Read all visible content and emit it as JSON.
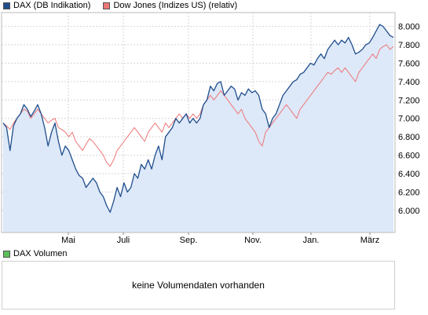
{
  "legend": [
    {
      "label": "DAX (DB Indikation)",
      "color": "#1f4e8c"
    },
    {
      "label": "Dow Jones (Indizes US) (relativ)",
      "color": "#ee7777"
    }
  ],
  "volume": {
    "legend_label": "DAX Volumen",
    "legend_color": "#5cc05c",
    "message": "keine Volumendaten vorhanden"
  },
  "chart_data": {
    "type": "line",
    "x_tick_labels": [
      "Mai",
      "Juli",
      "Sep.",
      "Nov.",
      "Jan.",
      "März"
    ],
    "y_tick_labels": [
      "6.000",
      "6.200",
      "6.400",
      "6.600",
      "6.800",
      "7.000",
      "7.200",
      "7.400",
      "7.600",
      "7.800",
      "8.000"
    ],
    "y_ticks": [
      6000,
      6200,
      6400,
      6600,
      6800,
      7000,
      7200,
      7400,
      7600,
      7800,
      8000
    ],
    "ylim": [
      5760,
      8150
    ],
    "grid": true,
    "legend_position": "top-left",
    "series": [
      {
        "name": "DAX (DB Indikation)",
        "color": "#1f4e8c",
        "fill": "#dde8f8",
        "values": [
          6950,
          6900,
          6650,
          6920,
          7000,
          7050,
          7150,
          7100,
          7020,
          7080,
          7150,
          7050,
          6900,
          6700,
          6850,
          6950,
          6750,
          6600,
          6700,
          6650,
          6550,
          6450,
          6380,
          6350,
          6250,
          6300,
          6350,
          6300,
          6200,
          6150,
          6050,
          5980,
          6100,
          6250,
          6150,
          6300,
          6200,
          6250,
          6400,
          6350,
          6500,
          6450,
          6550,
          6450,
          6600,
          6700,
          6550,
          6800,
          6850,
          6900,
          7000,
          6950,
          7000,
          7050,
          6950,
          7000,
          6950,
          7000,
          7150,
          7200,
          7350,
          7300,
          7380,
          7400,
          7250,
          7300,
          7350,
          7320,
          7200,
          7280,
          7250,
          7320,
          7280,
          7300,
          7250,
          7100,
          7050,
          6900,
          7000,
          7050,
          7150,
          7250,
          7300,
          7350,
          7400,
          7420,
          7480,
          7500,
          7550,
          7600,
          7580,
          7650,
          7700,
          7650,
          7750,
          7800,
          7850,
          7800,
          7850,
          7820,
          7880,
          7800,
          7700,
          7720,
          7750,
          7800,
          7820,
          7880,
          7950,
          8020,
          8000,
          7950,
          7900,
          7880
        ]
      },
      {
        "name": "Dow Jones (Indizes US) (relativ)",
        "color": "#ee7777",
        "values": [
          6950,
          6920,
          6880,
          6950,
          7000,
          7050,
          7100,
          7080,
          7000,
          7050,
          7100,
          7050,
          7000,
          6950,
          6980,
          7000,
          6900,
          6880,
          6850,
          6800,
          6850,
          6750,
          6700,
          6650,
          6720,
          6780,
          6750,
          6700,
          6650,
          6600,
          6520,
          6480,
          6550,
          6650,
          6700,
          6750,
          6800,
          6850,
          6900,
          6850,
          6800,
          6750,
          6850,
          6900,
          6950,
          6900,
          6850,
          6950,
          6900,
          6950,
          7000,
          7050,
          7000,
          7050,
          7000,
          7050,
          7000,
          7050,
          7150,
          7200,
          7250,
          7200,
          7250,
          7300,
          7250,
          7200,
          7150,
          7100,
          7050,
          7100,
          7000,
          6950,
          6900,
          6850,
          6750,
          6700,
          6850,
          6900,
          6950,
          7000,
          7050,
          7100,
          7150,
          7100,
          7050,
          7000,
          7100,
          7150,
          7200,
          7250,
          7300,
          7350,
          7400,
          7450,
          7500,
          7480,
          7520,
          7550,
          7500,
          7550,
          7500,
          7450,
          7400,
          7500,
          7550,
          7600,
          7650,
          7700,
          7650,
          7750,
          7780,
          7800,
          7750,
          7780
        ]
      }
    ]
  }
}
